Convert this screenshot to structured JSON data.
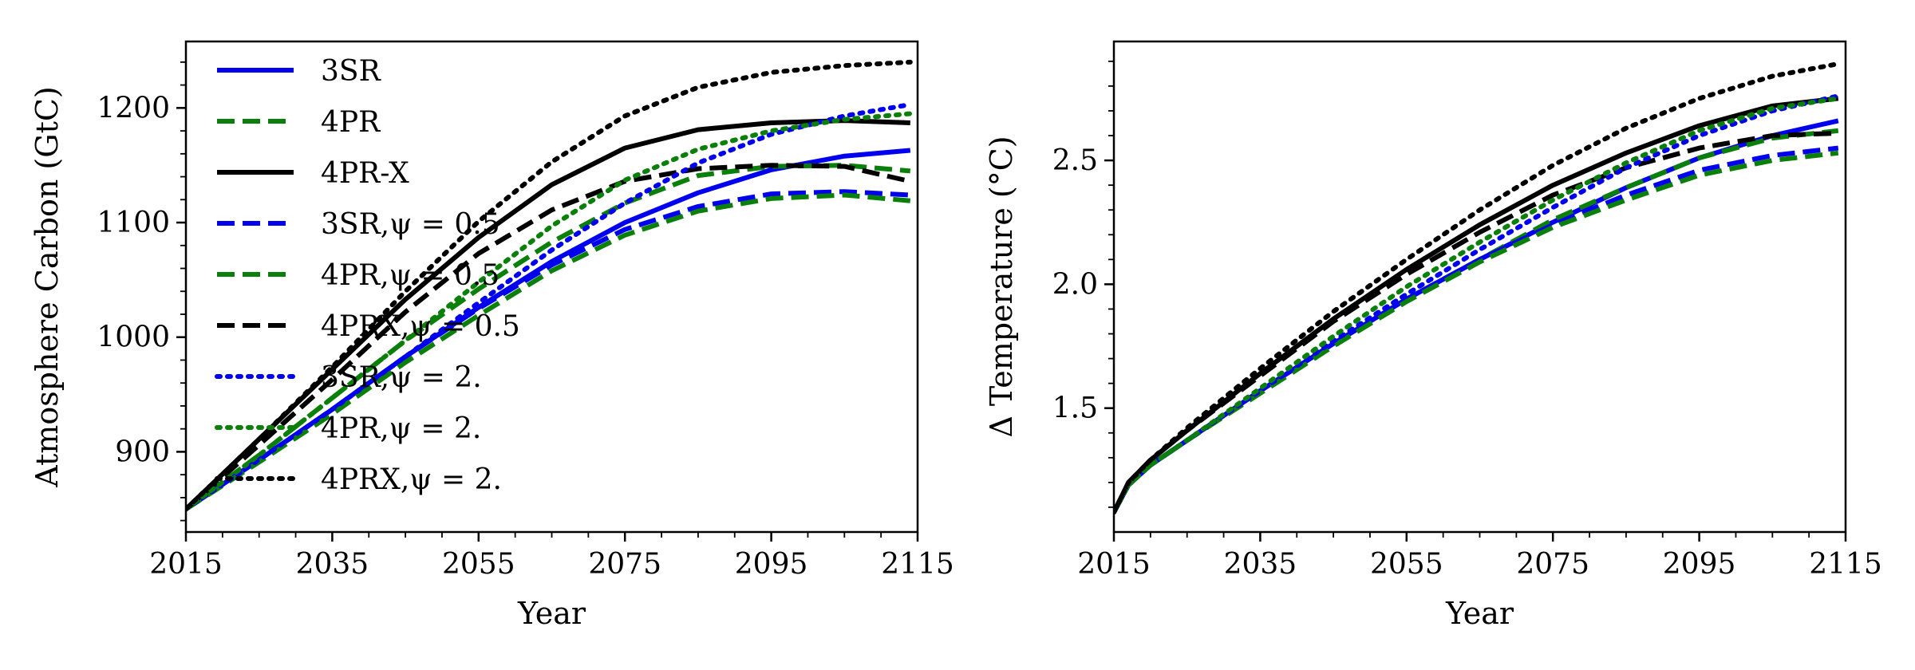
{
  "chart_data": [
    {
      "type": "line",
      "xlabel": "Year",
      "ylabel": "Atmosphere Carbon (GtC)",
      "xlim": [
        2015,
        2115
      ],
      "ylim": [
        830,
        1258
      ],
      "xticks": [
        2015,
        2035,
        2055,
        2075,
        2095,
        2115
      ],
      "yticks": [
        900,
        1000,
        1100,
        1200
      ],
      "legend_position": "upper-left",
      "x": [
        2015,
        2025,
        2035,
        2045,
        2055,
        2065,
        2075,
        2085,
        2095,
        2105,
        2114
      ],
      "series": [
        {
          "name": "3SR",
          "color": "#0000ee",
          "style": "solid",
          "values": [
            850,
            893,
            937,
            983,
            1026,
            1066,
            1100,
            1126,
            1146,
            1158,
            1163
          ]
        },
        {
          "name": "4PR",
          "color": "#0a800a",
          "style": "dashed",
          "values": [
            850,
            897,
            947,
            997,
            1042,
            1083,
            1117,
            1141,
            1149,
            1150,
            1145
          ]
        },
        {
          "name": "4PR-X",
          "color": "#000000",
          "style": "solid",
          "values": [
            850,
            911,
            972,
            1033,
            1087,
            1133,
            1165,
            1181,
            1187,
            1189,
            1187
          ]
        },
        {
          "name": "3SR,ψ = 0.5",
          "color": "#0000ee",
          "style": "dashed",
          "values": [
            850,
            893,
            937,
            983,
            1025,
            1063,
            1094,
            1114,
            1125,
            1127,
            1124
          ]
        },
        {
          "name": "4PR,ψ = 0.5",
          "color": "#0a800a",
          "style": "dashed",
          "values": [
            850,
            891,
            933,
            978,
            1019,
            1058,
            1089,
            1110,
            1121,
            1124,
            1119
          ]
        },
        {
          "name": "4PRX,ψ = 0.5",
          "color": "#000000",
          "style": "dashed",
          "values": [
            850,
            906,
            963,
            1022,
            1073,
            1111,
            1136,
            1147,
            1150,
            1149,
            1136
          ]
        },
        {
          "name": "3SR,ψ = 2.",
          "color": "#0000ee",
          "style": "dotted",
          "values": [
            850,
            893,
            937,
            983,
            1030,
            1076,
            1117,
            1152,
            1177,
            1193,
            1203
          ]
        },
        {
          "name": "4PR,ψ = 2.",
          "color": "#0a800a",
          "style": "dotted",
          "values": [
            850,
            897,
            947,
            997,
            1048,
            1097,
            1137,
            1164,
            1180,
            1190,
            1195
          ]
        },
        {
          "name": "4PRX,ψ = 2.",
          "color": "#000000",
          "style": "dotted",
          "values": [
            850,
            911,
            974,
            1040,
            1101,
            1153,
            1193,
            1218,
            1231,
            1237,
            1240
          ]
        }
      ]
    },
    {
      "type": "line",
      "xlabel": "Year",
      "ylabel": "Δ Temperature (°C)",
      "xlim": [
        2015,
        2115
      ],
      "ylim": [
        1.0,
        2.98
      ],
      "xticks": [
        2015,
        2035,
        2055,
        2075,
        2095,
        2115
      ],
      "yticks": [
        1.5,
        2.0,
        2.5
      ],
      "yticklabels": [
        "1.5",
        "2.0",
        "2.5"
      ],
      "x": [
        2015,
        2017,
        2020,
        2025,
        2035,
        2045,
        2055,
        2065,
        2075,
        2085,
        2095,
        2105,
        2114
      ],
      "series": [
        {
          "name": "3SR",
          "color": "#0000ee",
          "style": "solid",
          "values": [
            1.08,
            1.19,
            1.27,
            1.37,
            1.57,
            1.76,
            1.94,
            2.1,
            2.25,
            2.39,
            2.51,
            2.6,
            2.66
          ]
        },
        {
          "name": "4PR",
          "color": "#0a800a",
          "style": "dashed",
          "values": [
            1.08,
            1.19,
            1.27,
            1.37,
            1.57,
            1.76,
            1.94,
            2.1,
            2.26,
            2.39,
            2.51,
            2.59,
            2.62
          ]
        },
        {
          "name": "4PR-X",
          "color": "#000000",
          "style": "solid",
          "values": [
            1.08,
            1.2,
            1.29,
            1.41,
            1.64,
            1.86,
            2.06,
            2.24,
            2.4,
            2.53,
            2.64,
            2.72,
            2.75
          ]
        },
        {
          "name": "3SR,ψ = 0.5",
          "color": "#0000ee",
          "style": "dashed",
          "values": [
            1.08,
            1.19,
            1.27,
            1.37,
            1.57,
            1.76,
            1.94,
            2.1,
            2.24,
            2.36,
            2.46,
            2.52,
            2.55
          ]
        },
        {
          "name": "4PR,ψ = 0.5",
          "color": "#0a800a",
          "style": "dashed",
          "values": [
            1.08,
            1.19,
            1.27,
            1.37,
            1.56,
            1.75,
            1.93,
            2.09,
            2.23,
            2.34,
            2.44,
            2.5,
            2.53
          ]
        },
        {
          "name": "4PRX,ψ = 0.5",
          "color": "#000000",
          "style": "dashed",
          "values": [
            1.08,
            1.2,
            1.29,
            1.41,
            1.63,
            1.85,
            2.04,
            2.21,
            2.36,
            2.47,
            2.55,
            2.6,
            2.61
          ]
        },
        {
          "name": "3SR,ψ = 2.",
          "color": "#0000ee",
          "style": "dotted",
          "values": [
            1.08,
            1.19,
            1.27,
            1.37,
            1.57,
            1.77,
            1.96,
            2.14,
            2.31,
            2.47,
            2.6,
            2.7,
            2.76
          ]
        },
        {
          "name": "4PR,ψ = 2.",
          "color": "#0a800a",
          "style": "dotted",
          "values": [
            1.08,
            1.19,
            1.27,
            1.37,
            1.58,
            1.79,
            1.99,
            2.17,
            2.34,
            2.49,
            2.62,
            2.71,
            2.75
          ]
        },
        {
          "name": "4PRX,ψ = 2.",
          "color": "#000000",
          "style": "dotted",
          "values": [
            1.08,
            1.2,
            1.29,
            1.42,
            1.66,
            1.89,
            2.1,
            2.3,
            2.48,
            2.63,
            2.75,
            2.84,
            2.89
          ]
        }
      ]
    }
  ]
}
